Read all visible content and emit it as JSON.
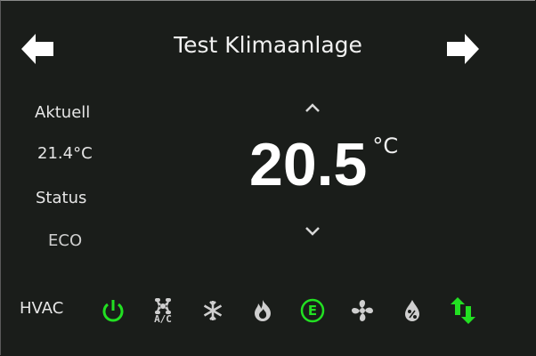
{
  "header": {
    "title": "Test Klimaanlage",
    "prev_icon": "arrow-left-icon",
    "next_icon": "arrow-right-icon"
  },
  "current": {
    "label": "Aktuell",
    "value": "21.4°C"
  },
  "status": {
    "label": "Status",
    "value": "ECO"
  },
  "setpoint": {
    "value": "20.5",
    "unit": "°C",
    "up_icon": "chevron-up-icon",
    "down_icon": "chevron-down-icon"
  },
  "hvac": {
    "label": "HVAC",
    "modes": [
      {
        "name": "power",
        "active": true
      },
      {
        "name": "ac-fan",
        "text": "A/C",
        "active": false
      },
      {
        "name": "cool",
        "active": false
      },
      {
        "name": "heat",
        "active": false
      },
      {
        "name": "eco",
        "text": "E",
        "active": true
      },
      {
        "name": "fan",
        "active": false
      },
      {
        "name": "dry",
        "active": false
      },
      {
        "name": "auto",
        "active": true
      }
    ]
  },
  "colors": {
    "background": "#1a1d1a",
    "active": "#22e022",
    "inactive": "#cfcfcf",
    "text": "#e8e8e8"
  }
}
